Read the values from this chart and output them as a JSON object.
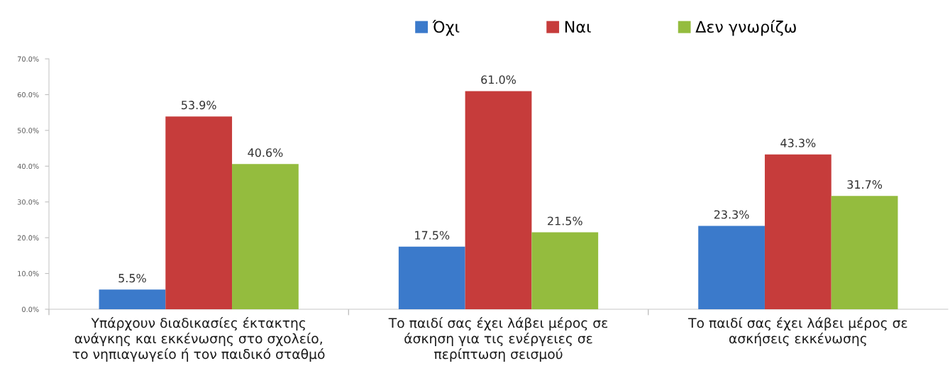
{
  "chart_data": {
    "type": "bar",
    "categories": [
      "Υπάρχουν διαδικασίες έκτακτης\nανάγκης και εκκένωσης στο σχολείο,\nτο νηπιαγωγείο ή τον παιδικό σταθμό",
      "Το παιδί σας έχει λάβει μέρος σε\nάσκηση για τις ενέργειες σε\nπερίπτωση σεισμού",
      "Το παιδί σας έχει λάβει μέρος σε\nασκήσεις εκκένωσης"
    ],
    "series": [
      {
        "name": "Όχι",
        "color": "#3b7acb",
        "values": [
          5.5,
          17.5,
          23.3
        ],
        "value_labels": [
          "5.5%",
          "17.5%",
          "23.3%"
        ]
      },
      {
        "name": "Ναι",
        "color": "#c63c3b",
        "values": [
          53.9,
          61.0,
          43.3
        ],
        "value_labels": [
          "53.9%",
          "61.0%",
          "43.3%"
        ]
      },
      {
        "name": "Δεν γνωρίζω",
        "color": "#94bc3e",
        "values": [
          40.6,
          21.5,
          31.7
        ],
        "value_labels": [
          "40.6%",
          "21.5%",
          "31.7%"
        ]
      }
    ],
    "ylim": [
      0,
      70
    ],
    "yticks": [
      {
        "value": 0,
        "label": "0.0%"
      },
      {
        "value": 10,
        "label": "10.0%"
      },
      {
        "value": 20,
        "label": "20.0%"
      },
      {
        "value": 30,
        "label": "30.0%"
      },
      {
        "value": 40,
        "label": "40.0%"
      },
      {
        "value": 50,
        "label": "50.0%"
      },
      {
        "value": 60,
        "label": "60.0%"
      },
      {
        "value": 70,
        "label": "70.0%"
      }
    ],
    "grid": false,
    "legend": "top"
  }
}
